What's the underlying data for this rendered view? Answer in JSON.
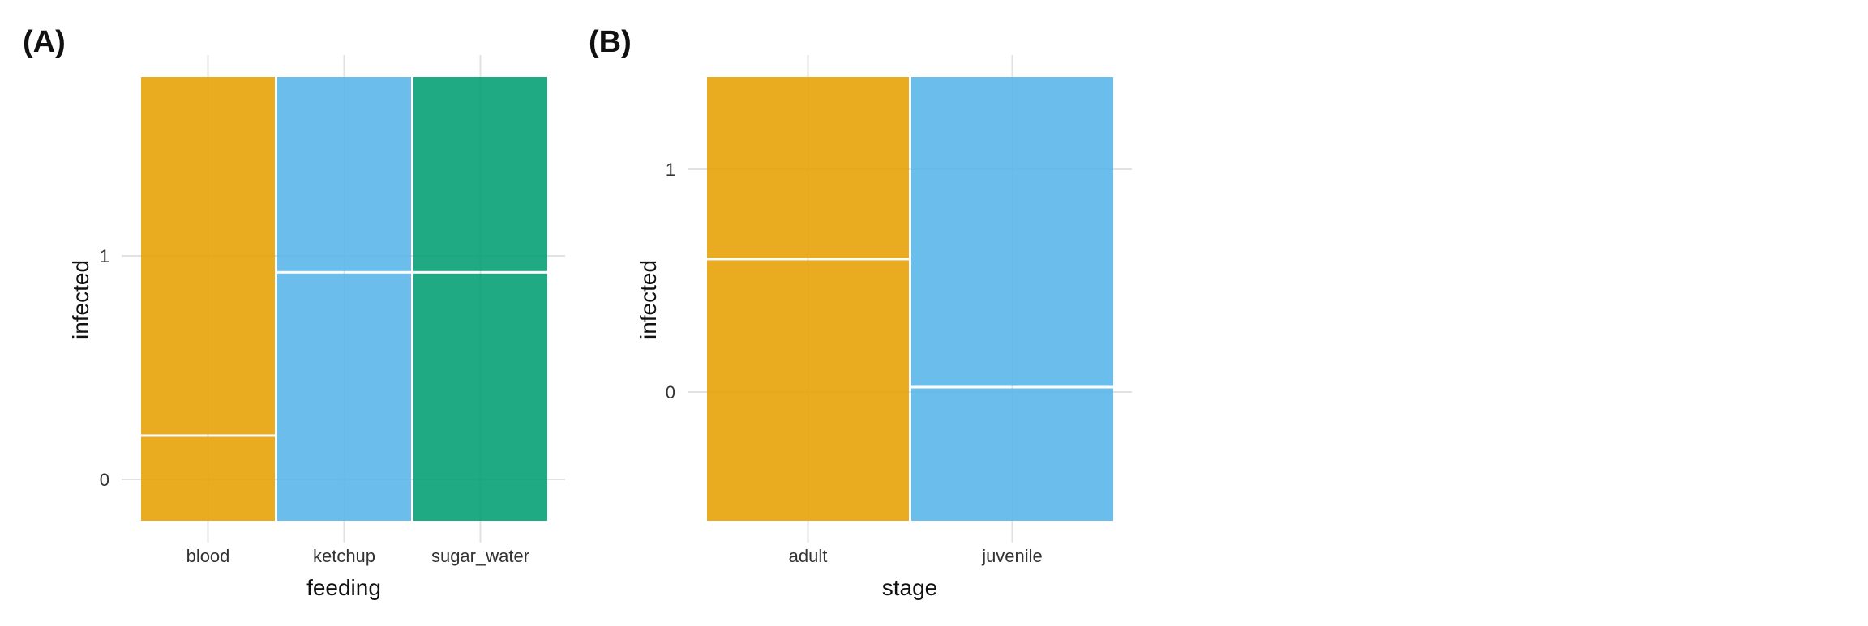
{
  "colors": {
    "blood": "#E69F00",
    "ketchup": "#56B4E9",
    "sugar_water": "#009E73",
    "adult": "#E69F00",
    "juvenile": "#56B4E9",
    "grid": "#e2e2e2",
    "divider": "#ffffff",
    "text": "#333333"
  },
  "chart_data": [
    {
      "type": "mosaic",
      "panel_label": "(A)",
      "xlabel": "feeding",
      "ylabel": "infected",
      "y_tick_labels": [
        "0",
        "1"
      ],
      "categories": [
        "blood",
        "ketchup",
        "sugar_water"
      ],
      "column_width_fractions": [
        0.333,
        0.333,
        0.333
      ],
      "infected_0_fraction": [
        0.19,
        0.56,
        0.56
      ],
      "infected_1_fraction": [
        0.81,
        0.44,
        0.44
      ],
      "fill_colors": [
        "#E69F00",
        "#56B4E9",
        "#009E73"
      ]
    },
    {
      "type": "mosaic",
      "panel_label": "(B)",
      "xlabel": "stage",
      "ylabel": "infected",
      "y_tick_labels": [
        "0",
        "1"
      ],
      "categories": [
        "adult",
        "juvenile"
      ],
      "column_width_fractions": [
        0.5,
        0.5
      ],
      "infected_0_fraction": [
        0.59,
        0.3
      ],
      "infected_1_fraction": [
        0.41,
        0.7
      ],
      "fill_colors": [
        "#E69F00",
        "#56B4E9"
      ]
    }
  ]
}
